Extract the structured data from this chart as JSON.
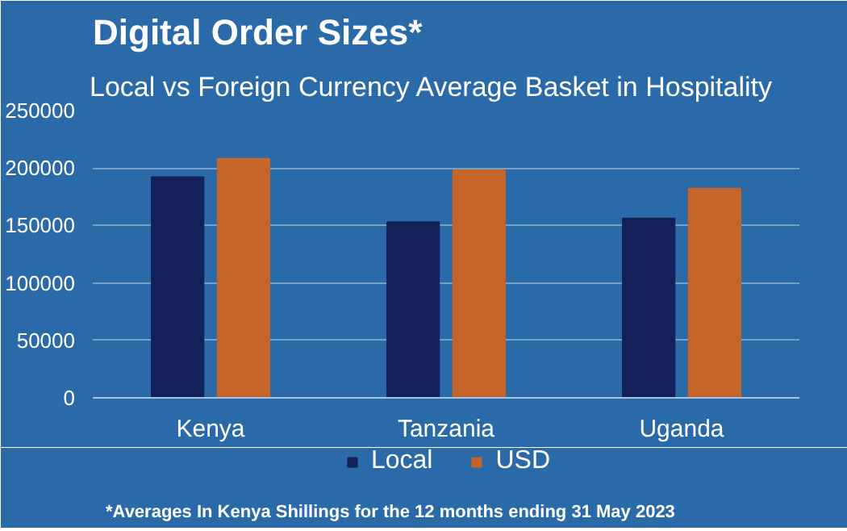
{
  "chart_data": {
    "type": "bar",
    "title": "Digital Order Sizes*",
    "subtitle": "Local vs Foreign Currency Average Basket in Hospitality",
    "categories": [
      "Kenya",
      "Tanzania",
      "Uganda"
    ],
    "series": [
      {
        "name": "Local",
        "color": "#13205a",
        "values": [
          192000,
          153000,
          156000
        ]
      },
      {
        "name": "USD",
        "color": "#c5652a",
        "values": [
          208000,
          198000,
          182000
        ]
      }
    ],
    "ylim": [
      0,
      250000
    ],
    "yticks": [
      0,
      50000,
      100000,
      150000,
      200000,
      250000
    ],
    "grid": "y",
    "legend": "bottom",
    "annotations": [
      "*Averages In Kenya Shillings for the 12 months ending 31 May 2023"
    ]
  }
}
